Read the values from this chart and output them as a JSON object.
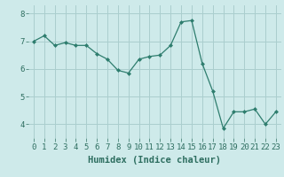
{
  "x": [
    0,
    1,
    2,
    3,
    4,
    5,
    6,
    7,
    8,
    9,
    10,
    11,
    12,
    13,
    14,
    15,
    16,
    17,
    18,
    19,
    20,
    21,
    22,
    23
  ],
  "y": [
    7.0,
    7.2,
    6.85,
    6.95,
    6.85,
    6.85,
    6.55,
    6.35,
    5.95,
    5.85,
    6.35,
    6.45,
    6.5,
    6.85,
    7.7,
    7.75,
    6.2,
    5.2,
    3.85,
    4.45,
    4.45,
    4.55,
    4.0,
    4.45
  ],
  "line_color": "#2e7d6e",
  "marker": "D",
  "marker_size": 2,
  "bg_color": "#ceeaea",
  "grid_color": "#aacece",
  "xlabel": "Humidex (Indice chaleur)",
  "ylim": [
    3.5,
    8.3
  ],
  "xlim": [
    -0.5,
    23.5
  ],
  "yticks": [
    4,
    5,
    6,
    7,
    8
  ],
  "xticks": [
    0,
    1,
    2,
    3,
    4,
    5,
    6,
    7,
    8,
    9,
    10,
    11,
    12,
    13,
    14,
    15,
    16,
    17,
    18,
    19,
    20,
    21,
    22,
    23
  ],
  "tick_color": "#2e6e60",
  "label_fontsize": 6.5,
  "xlabel_fontsize": 7.5
}
